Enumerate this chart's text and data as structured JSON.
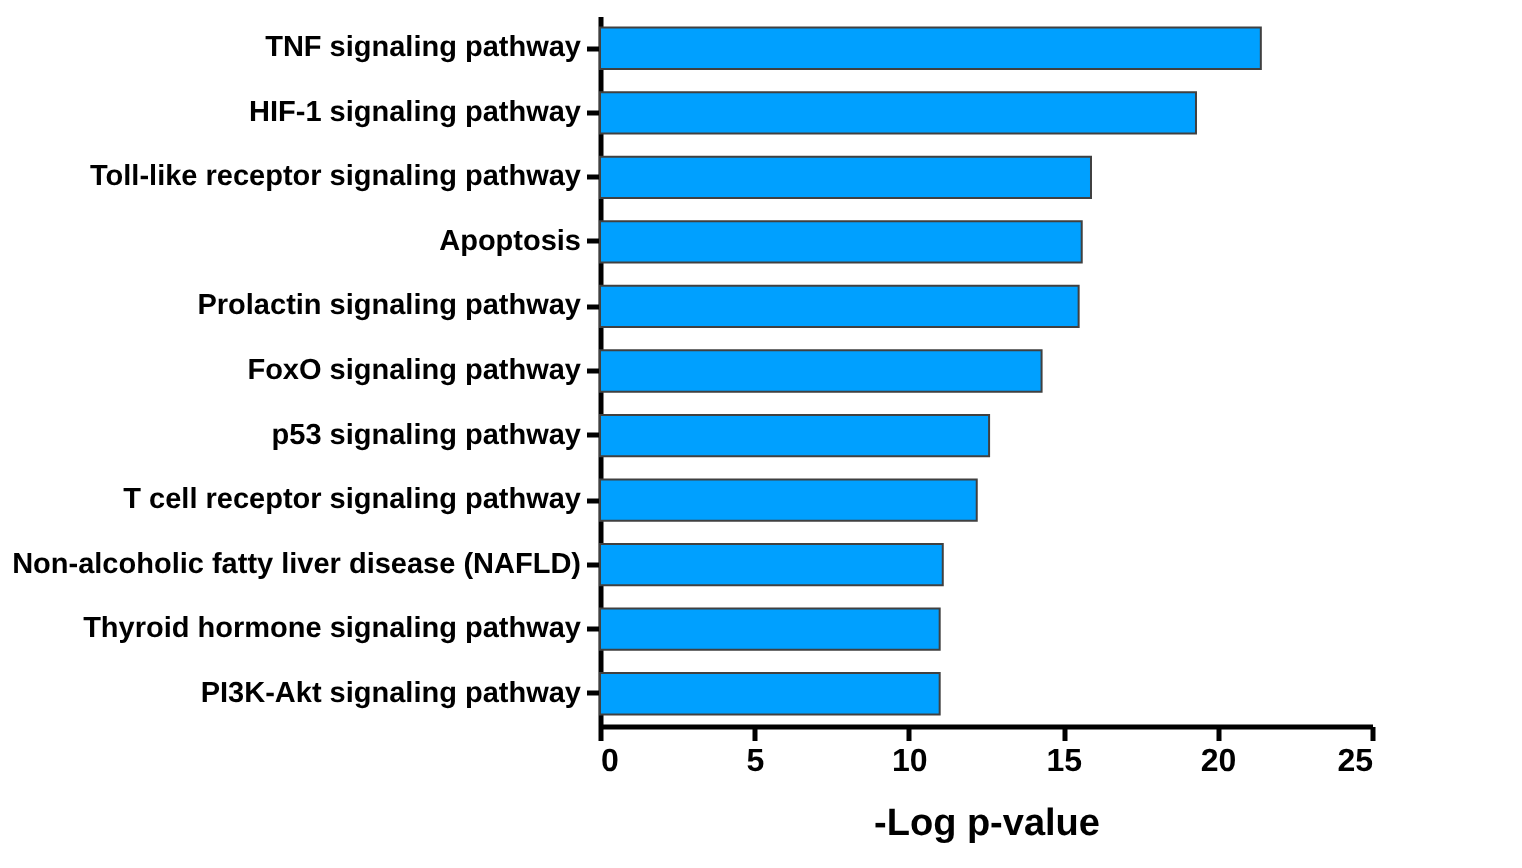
{
  "chart_data": {
    "type": "bar",
    "orientation": "horizontal",
    "xlabel": "-Log p-value",
    "categories": [
      "TNF signaling pathway",
      "HIF-1 signaling pathway",
      "Toll-like receptor signaling pathway",
      "Apoptosis",
      "Prolactin signaling pathway",
      "FoxO signaling pathway",
      "p53 signaling pathway",
      "T cell receptor signaling pathway",
      "Non-alcoholic fatty liver disease (NAFLD)",
      "Thyroid hormone signaling pathway",
      "PI3K-Akt signaling pathway"
    ],
    "values": [
      21.4,
      19.3,
      15.9,
      15.6,
      15.5,
      14.3,
      12.6,
      12.2,
      11.1,
      11.0,
      11.0
    ],
    "color": "#00a0ff",
    "xlim": [
      0,
      25
    ],
    "xticks": [
      0,
      5,
      10,
      15,
      20,
      25
    ],
    "grid": false
  }
}
